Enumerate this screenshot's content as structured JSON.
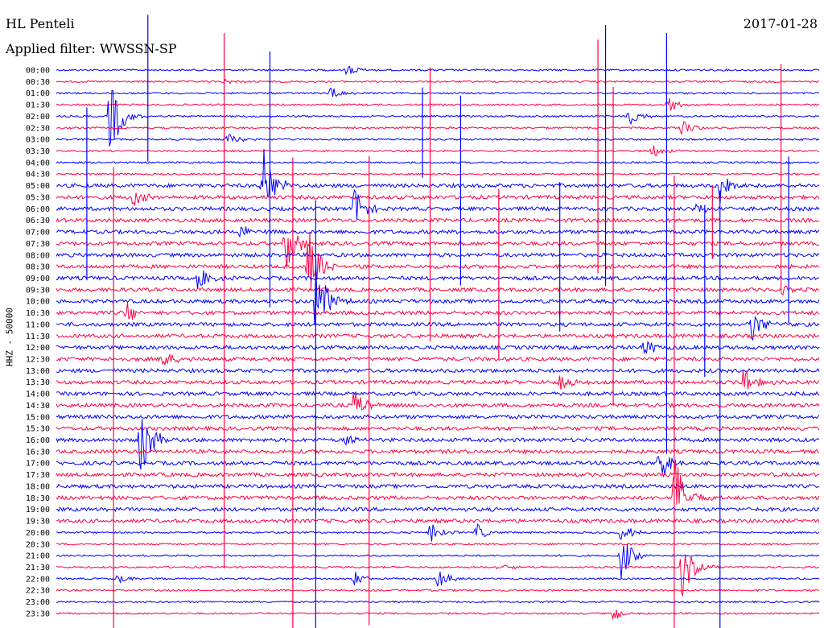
{
  "header": {
    "station": "HL Penteli",
    "filter": "Applied filter: WWSSN-SP",
    "date": "2017-01-28"
  },
  "chart_data": {
    "type": "line",
    "title": "HL Penteli",
    "subtitle": "Applied filter: WWSSN-SP",
    "ylabel": "HHZ - 50000",
    "row_labels": [
      "00:00",
      "00:30",
      "01:00",
      "01:30",
      "02:00",
      "02:30",
      "03:00",
      "03:30",
      "04:00",
      "04:30",
      "05:00",
      "05:30",
      "06:00",
      "06:30",
      "07:00",
      "07:30",
      "08:00",
      "08:30",
      "09:00",
      "09:30",
      "10:00",
      "10:30",
      "11:00",
      "11:30",
      "12:00",
      "12:30",
      "13:00",
      "13:30",
      "14:00",
      "14:30",
      "15:00",
      "15:30",
      "16:00",
      "16:30",
      "17:00",
      "17:30",
      "18:00",
      "18:30",
      "19:00",
      "19:30",
      "20:00",
      "20:30",
      "21:00",
      "21:30",
      "22:00",
      "22:30",
      "23:00",
      "23:30"
    ],
    "colors": {
      "even": "#0000ff",
      "odd": "#ff0044"
    },
    "grid": false,
    "events": [
      {
        "row": 0,
        "t": 0.38,
        "amp": 10
      },
      {
        "row": 1,
        "t": 0.22,
        "amp": 4
      },
      {
        "row": 2,
        "t": 0.36,
        "amp": 10
      },
      {
        "row": 3,
        "t": 0.8,
        "amp": 14
      },
      {
        "row": 4,
        "t": 0.07,
        "amp": 60
      },
      {
        "row": 4,
        "t": 0.75,
        "amp": 14
      },
      {
        "row": 5,
        "t": 0.82,
        "amp": 12
      },
      {
        "row": 6,
        "t": 0.22,
        "amp": 12
      },
      {
        "row": 7,
        "t": 0.78,
        "amp": 10
      },
      {
        "row": 10,
        "t": 0.27,
        "amp": 60
      },
      {
        "row": 10,
        "t": 0.87,
        "amp": 30
      },
      {
        "row": 11,
        "t": 0.1,
        "amp": 12
      },
      {
        "row": 12,
        "t": 0.39,
        "amp": 30
      },
      {
        "row": 12,
        "t": 0.84,
        "amp": 12
      },
      {
        "row": 14,
        "t": 0.24,
        "amp": 10
      },
      {
        "row": 15,
        "t": 0.3,
        "amp": 40
      },
      {
        "row": 17,
        "t": 0.33,
        "amp": 60
      },
      {
        "row": 18,
        "t": 0.18,
        "amp": 25
      },
      {
        "row": 19,
        "t": 0.95,
        "amp": 8
      },
      {
        "row": 20,
        "t": 0.34,
        "amp": 60
      },
      {
        "row": 21,
        "t": 0.09,
        "amp": 20
      },
      {
        "row": 22,
        "t": 0.91,
        "amp": 30
      },
      {
        "row": 24,
        "t": 0.77,
        "amp": 14
      },
      {
        "row": 25,
        "t": 0.14,
        "amp": 12
      },
      {
        "row": 27,
        "t": 0.66,
        "amp": 18
      },
      {
        "row": 27,
        "t": 0.9,
        "amp": 22
      },
      {
        "row": 29,
        "t": 0.39,
        "amp": 24
      },
      {
        "row": 32,
        "t": 0.11,
        "amp": 60
      },
      {
        "row": 32,
        "t": 0.38,
        "amp": 12
      },
      {
        "row": 34,
        "t": 0.79,
        "amp": 28
      },
      {
        "row": 37,
        "t": 0.81,
        "amp": 60
      },
      {
        "row": 40,
        "t": 0.49,
        "amp": 16
      },
      {
        "row": 40,
        "t": 0.55,
        "amp": 12
      },
      {
        "row": 40,
        "t": 0.74,
        "amp": 16
      },
      {
        "row": 42,
        "t": 0.74,
        "amp": 30
      },
      {
        "row": 43,
        "t": 0.58,
        "amp": 8
      },
      {
        "row": 43,
        "t": 0.82,
        "amp": 40
      },
      {
        "row": 44,
        "t": 0.08,
        "amp": 8
      },
      {
        "row": 44,
        "t": 0.39,
        "amp": 10
      },
      {
        "row": 44,
        "t": 0.5,
        "amp": 14
      },
      {
        "row": 47,
        "t": 0.73,
        "amp": 12
      }
    ],
    "spikes": [
      0.04,
      0.075,
      0.12,
      0.22,
      0.28,
      0.31,
      0.34,
      0.41,
      0.48,
      0.49,
      0.53,
      0.58,
      0.66,
      0.71,
      0.72,
      0.73,
      0.8,
      0.81,
      0.85,
      0.86,
      0.87,
      0.95,
      0.96
    ]
  }
}
